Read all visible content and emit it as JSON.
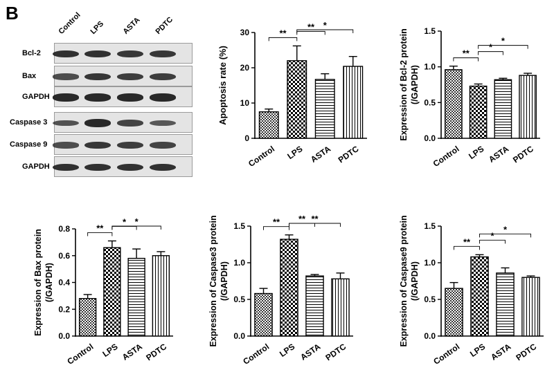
{
  "figure": {
    "panel_letter": "B",
    "blot": {
      "columns": [
        "Control",
        "LPS",
        "ASTA",
        "PDTC"
      ],
      "rows": [
        {
          "label": "Bcl-2",
          "intensities": [
            0.85,
            0.85,
            0.8,
            0.8
          ]
        },
        {
          "label": "Bax",
          "intensities": [
            0.6,
            0.8,
            0.75,
            0.75
          ]
        },
        {
          "label": "GAPDH",
          "intensities": [
            0.95,
            0.95,
            0.95,
            0.95
          ]
        },
        {
          "label": "Caspase 3",
          "intensities": [
            0.55,
            0.95,
            0.7,
            0.5
          ]
        },
        {
          "label": "Caspase 9",
          "intensities": [
            0.6,
            0.8,
            0.75,
            0.7
          ]
        },
        {
          "label": "GAPDH",
          "intensities": [
            0.85,
            0.85,
            0.85,
            0.85
          ]
        }
      ]
    }
  },
  "chart_data": [
    {
      "type": "bar",
      "categories": [
        "Control",
        "LPS",
        "ASTA",
        "PDTC"
      ],
      "values": [
        7.5,
        22,
        16.7,
        20.4
      ],
      "errors": [
        0.8,
        4.2,
        1.6,
        2.8
      ],
      "ylabel": "Apoptosis rate (%)",
      "ylim": [
        0,
        30
      ],
      "yticks": [
        "0",
        "10",
        "20",
        "30"
      ],
      "significance": [
        {
          "from": 0,
          "to": 1,
          "label": "**"
        },
        {
          "from": 1,
          "to": 2,
          "label": "**"
        },
        {
          "from": 1,
          "to": 3,
          "label": "*"
        }
      ]
    },
    {
      "type": "bar",
      "categories": [
        "Control",
        "LPS",
        "ASTA",
        "PDTC"
      ],
      "values": [
        0.96,
        0.73,
        0.82,
        0.88
      ],
      "errors": [
        0.05,
        0.03,
        0.02,
        0.03
      ],
      "ylabel": "Expression of Bcl-2 protein (/GAPDH)",
      "ylim": [
        0,
        1.5
      ],
      "yticks": [
        "0.0",
        "0.5",
        "1.0",
        "1.5"
      ],
      "significance": [
        {
          "from": 0,
          "to": 1,
          "label": "**"
        },
        {
          "from": 1,
          "to": 2,
          "label": "*"
        },
        {
          "from": 1,
          "to": 3,
          "label": "*"
        }
      ]
    },
    {
      "type": "bar",
      "categories": [
        "Control",
        "LPS",
        "ASTA",
        "PDTC"
      ],
      "values": [
        0.28,
        0.66,
        0.58,
        0.6
      ],
      "errors": [
        0.03,
        0.05,
        0.07,
        0.03
      ],
      "ylabel": "Expression of Bax protein (/GAPDH)",
      "ylim": [
        0,
        0.8
      ],
      "yticks": [
        "0.0",
        "0.2",
        "0.4",
        "0.6",
        "0.8"
      ],
      "significance": [
        {
          "from": 0,
          "to": 1,
          "label": "**"
        },
        {
          "from": 1,
          "to": 2,
          "label": "*"
        },
        {
          "from": 1,
          "to": 3,
          "label": "*"
        }
      ]
    },
    {
      "type": "bar",
      "categories": [
        "Control",
        "LPS",
        "ASTA",
        "PDTC"
      ],
      "values": [
        0.58,
        1.32,
        0.82,
        0.78
      ],
      "errors": [
        0.07,
        0.06,
        0.02,
        0.08
      ],
      "ylabel": "Expression of Caspase3 protein (/GAPDH)",
      "ylim": [
        0,
        1.5
      ],
      "yticks": [
        "0.0",
        "0.5",
        "1.0",
        "1.5"
      ],
      "significance": [
        {
          "from": 0,
          "to": 1,
          "label": "**"
        },
        {
          "from": 1,
          "to": 2,
          "label": "**"
        },
        {
          "from": 1,
          "to": 3,
          "label": "**"
        }
      ]
    },
    {
      "type": "bar",
      "categories": [
        "Control",
        "LPS",
        "ASTA",
        "PDTC"
      ],
      "values": [
        0.65,
        1.08,
        0.86,
        0.8
      ],
      "errors": [
        0.08,
        0.03,
        0.07,
        0.02
      ],
      "ylabel": "Expression of Caspase9 protein (/GAPDH)",
      "ylim": [
        0,
        1.5
      ],
      "yticks": [
        "0.0",
        "0.5",
        "1.0",
        "1.5"
      ],
      "significance": [
        {
          "from": 0,
          "to": 1,
          "label": "**"
        },
        {
          "from": 1,
          "to": 2,
          "label": "*"
        },
        {
          "from": 1,
          "to": 3,
          "label": "*"
        }
      ]
    }
  ]
}
